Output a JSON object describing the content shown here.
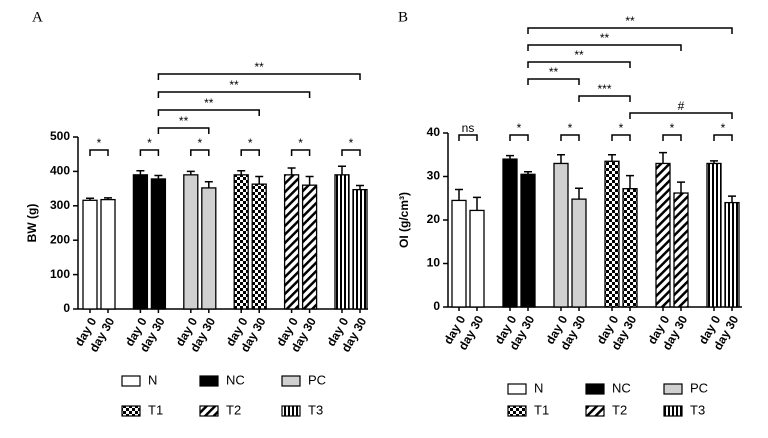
{
  "chart_data": [
    {
      "type": "bar",
      "title": "A",
      "y_label": "BW (g)",
      "categories": [
        "day 0",
        "day 30"
      ],
      "ylim": [
        0,
        500
      ],
      "yticks": [
        0,
        100,
        200,
        300,
        400,
        500
      ],
      "series": [
        {
          "name": "N",
          "color": "#ffffff",
          "pattern": "none",
          "values": [
            316,
            318
          ],
          "errors": [
            6,
            5
          ]
        },
        {
          "name": "NC",
          "color": "#000000",
          "pattern": "none",
          "values": [
            390,
            378
          ],
          "errors": [
            12,
            10
          ]
        },
        {
          "name": "PC",
          "color": "#d0d0d0",
          "pattern": "none",
          "values": [
            390,
            352
          ],
          "errors": [
            10,
            18
          ]
        },
        {
          "name": "T1",
          "color": "#000000",
          "pattern": "checker",
          "values": [
            390,
            363
          ],
          "errors": [
            12,
            22
          ]
        },
        {
          "name": "T2",
          "color": "#000000",
          "pattern": "diagonal",
          "values": [
            390,
            360
          ],
          "errors": [
            20,
            25
          ]
        },
        {
          "name": "T3",
          "color": "#000000",
          "pattern": "vertical",
          "values": [
            390,
            347
          ],
          "errors": [
            25,
            12
          ]
        }
      ],
      "brackets": [
        {
          "between": [
            [
              0,
              0
            ],
            [
              0,
              1
            ]
          ],
          "label": "*"
        },
        {
          "between": [
            [
              1,
              0
            ],
            [
              1,
              1
            ]
          ],
          "label": "*"
        },
        {
          "between": [
            [
              2,
              0
            ],
            [
              2,
              1
            ]
          ],
          "label": "*"
        },
        {
          "between": [
            [
              3,
              0
            ],
            [
              3,
              1
            ]
          ],
          "label": "*"
        },
        {
          "between": [
            [
              4,
              0
            ],
            [
              4,
              1
            ]
          ],
          "label": "*"
        },
        {
          "between": [
            [
              5,
              0
            ],
            [
              5,
              1
            ]
          ],
          "label": "*"
        },
        {
          "between": [
            [
              1,
              1
            ],
            [
              2,
              1
            ]
          ],
          "label": "**"
        },
        {
          "between": [
            [
              1,
              1
            ],
            [
              3,
              1
            ]
          ],
          "label": "**"
        },
        {
          "between": [
            [
              1,
              1
            ],
            [
              4,
              1
            ]
          ],
          "label": "**"
        },
        {
          "between": [
            [
              1,
              1
            ],
            [
              5,
              1
            ]
          ],
          "label": "**"
        }
      ]
    },
    {
      "type": "bar",
      "title": "B",
      "y_label": "OI (g/cm³)",
      "categories": [
        "day 0",
        "day 30"
      ],
      "ylim": [
        0,
        40
      ],
      "yticks": [
        0,
        10,
        20,
        30,
        40
      ],
      "series": [
        {
          "name": "N",
          "color": "#ffffff",
          "pattern": "none",
          "values": [
            24.5,
            22.2
          ],
          "errors": [
            2.5,
            3
          ]
        },
        {
          "name": "NC",
          "color": "#000000",
          "pattern": "none",
          "values": [
            34,
            30.5
          ],
          "errors": [
            0.8,
            0.6
          ]
        },
        {
          "name": "PC",
          "color": "#d0d0d0",
          "pattern": "none",
          "values": [
            33,
            24.8
          ],
          "errors": [
            2,
            2.5
          ]
        },
        {
          "name": "T1",
          "color": "#000000",
          "pattern": "checker",
          "values": [
            33.5,
            27.2
          ],
          "errors": [
            1.5,
            3
          ]
        },
        {
          "name": "T2",
          "color": "#000000",
          "pattern": "diagonal",
          "values": [
            33,
            26.2
          ],
          "errors": [
            2.5,
            2.5
          ]
        },
        {
          "name": "T3",
          "color": "#000000",
          "pattern": "vertical",
          "values": [
            33,
            24
          ],
          "errors": [
            0.6,
            1.5
          ]
        }
      ],
      "brackets": [
        {
          "between": [
            [
              0,
              0
            ],
            [
              0,
              1
            ]
          ],
          "label": "ns"
        },
        {
          "between": [
            [
              1,
              0
            ],
            [
              1,
              1
            ]
          ],
          "label": "*"
        },
        {
          "between": [
            [
              2,
              0
            ],
            [
              2,
              1
            ]
          ],
          "label": "*"
        },
        {
          "between": [
            [
              3,
              0
            ],
            [
              3,
              1
            ]
          ],
          "label": "*"
        },
        {
          "between": [
            [
              4,
              0
            ],
            [
              4,
              1
            ]
          ],
          "label": "*"
        },
        {
          "between": [
            [
              5,
              0
            ],
            [
              5,
              1
            ]
          ],
          "label": "*"
        },
        {
          "between": [
            [
              3,
              1
            ],
            [
              5,
              1
            ]
          ],
          "label": "#"
        },
        {
          "between": [
            [
              2,
              1
            ],
            [
              3,
              1
            ]
          ],
          "label": "***"
        },
        {
          "between": [
            [
              1,
              1
            ],
            [
              2,
              1
            ]
          ],
          "label": "**"
        },
        {
          "between": [
            [
              1,
              1
            ],
            [
              3,
              1
            ]
          ],
          "label": "**"
        },
        {
          "between": [
            [
              1,
              1
            ],
            [
              4,
              1
            ]
          ],
          "label": "**"
        },
        {
          "between": [
            [
              1,
              1
            ],
            [
              5,
              1
            ]
          ],
          "label": "**"
        }
      ]
    }
  ]
}
